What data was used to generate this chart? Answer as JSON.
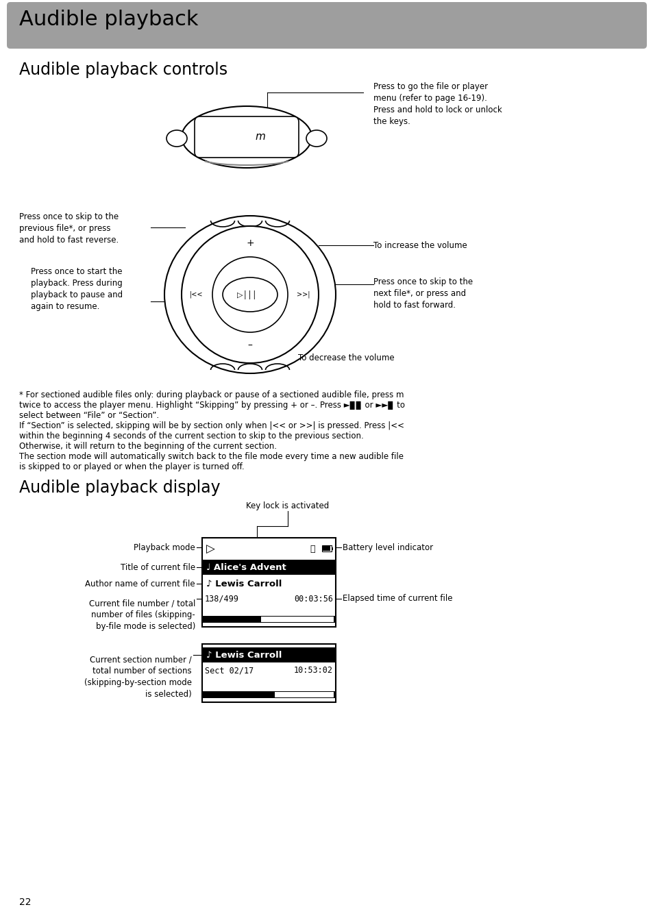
{
  "title_banner": "Audible playback",
  "title_banner_bg": "#9E9E9E",
  "title_banner_fg": "#000000",
  "section1_title": "Audible playback controls",
  "section2_title": "Audible playback display",
  "page_number": "22",
  "bg_color": "#FFFFFF",
  "text_color": "#000000",
  "ann_top_right": "Press to go the file or player\nmenu (refer to page 16-19).\nPress and hold to lock or unlock\nthe keys.",
  "ann_left_upper": "Press once to skip to the\nprevious file*, or press\nand hold to fast reverse.",
  "ann_left_lower": "Press once to start the\nplayback. Press during\nplayback to pause and\nagain to resume.",
  "ann_right_upper": "To increase the volume",
  "ann_right_lower": "Press once to skip to the\nnext file*, or press and\nhold to fast forward.",
  "ann_bottom": "To decrease the volume",
  "body_lines": [
    "* For sectioned audible files only: during playback or pause of a sectioned audible file, press m",
    "twice to access the player menu. Highlight “Skipping” by pressing + or –. Press ►▊▊ or ►►▊ to",
    "select between “File” or “Section”.",
    "If “Section” is selected, skipping will be by section only when |<< or >>| is pressed. Press |<<",
    "within the beginning 4 seconds of the current section to skip to the previous section.",
    "Otherwise, it will return to the beginning of the current section.",
    "The section mode will automatically switch back to the file mode every time a new audible file",
    "is skipped to or played or when the player is turned off."
  ],
  "ann_key_lock": "Key lock is activated",
  "ann_playback_mode": "Playback mode",
  "ann_title_file": "Title of current file",
  "ann_author": "Author name of current file",
  "ann_file_num": "Current file number / total\nnumber of files (skipping-\nby-file mode is selected)",
  "ann_sect_num": "Current section number /\ntotal number of sections\n(skipping-by-section mode\nis selected)",
  "ann_battery": "Battery level indicator",
  "ann_elapsed": "Elapsed time of current file"
}
